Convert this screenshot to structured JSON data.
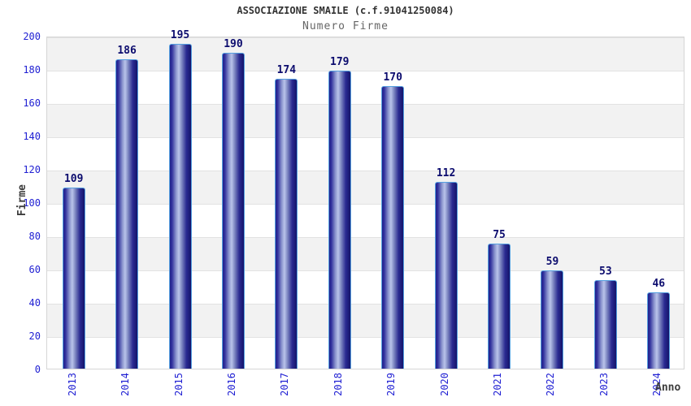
{
  "header": {
    "title": "ASSOCIAZIONE SMAILE (c.f.91041250084)",
    "subtitle": "Numero Firme"
  },
  "chart_data": {
    "type": "bar",
    "title": "ASSOCIAZIONE SMAILE (c.f.91041250084)",
    "subtitle": "Numero Firme",
    "categories": [
      "2013",
      "2014",
      "2015",
      "2016",
      "2017",
      "2018",
      "2019",
      "2020",
      "2021",
      "2022",
      "2023",
      "2024"
    ],
    "values": [
      109,
      186,
      195,
      190,
      174,
      179,
      170,
      112,
      75,
      59,
      53,
      46
    ],
    "xlabel": "Anno",
    "ylabel": "Firme",
    "ylim": [
      0,
      200
    ],
    "ytick_step": 20,
    "yticks": [
      0,
      20,
      40,
      60,
      80,
      100,
      120,
      140,
      160,
      180,
      200
    ],
    "grid": "horizontal-alternating-bands",
    "legend_position": "none",
    "colors": {
      "bar_dark": "#20208a",
      "bar_highlight": "#b9c3ea",
      "bar_border": "#55a0e0",
      "value_label": "#0c0c6e",
      "tick_label": "#2121d3",
      "axis_label": "#3d3d3d",
      "title": "#333333",
      "subtitle": "#666666",
      "band_gray": "#f2f2f2",
      "band_white": "#ffffff",
      "plot_border": "#d6d6d6"
    }
  }
}
